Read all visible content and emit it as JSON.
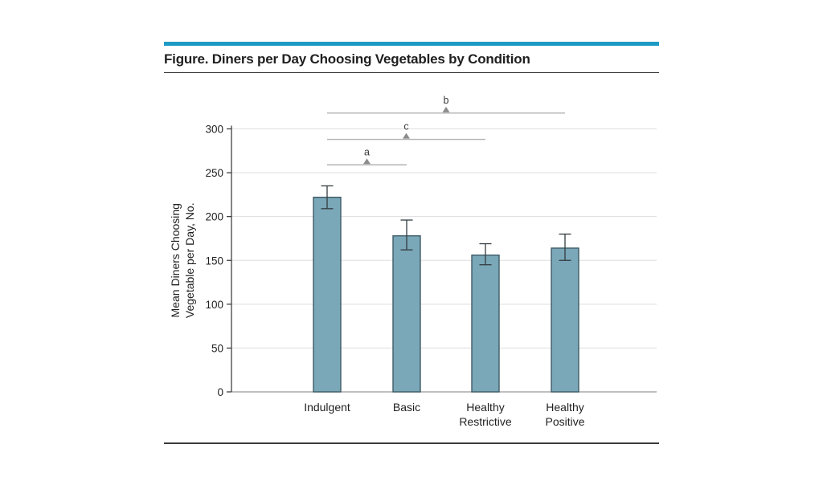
{
  "colors": {
    "accent_rule": "#1d9bc4",
    "bar_fill": "#7AA8B8",
    "bar_stroke": "#3E5A66",
    "error_bar": "#333B40",
    "grid": "#DEDEDE",
    "baseline": "#999999",
    "axis": "#333333",
    "sig_line": "#B3B3B3",
    "sig_marker": "#8C8C8C",
    "text": "#1F1F1F"
  },
  "chart_data": {
    "type": "bar",
    "title": "Figure. Diners per Day Choosing Vegetables by Condition",
    "categories": [
      "Indulgent",
      "Basic",
      "Healthy Restrictive",
      "Healthy Positive"
    ],
    "category_lines": [
      [
        "Indulgent"
      ],
      [
        "Basic"
      ],
      [
        "Healthy",
        "Restrictive"
      ],
      [
        "Healthy",
        "Positive"
      ]
    ],
    "values": [
      222,
      178,
      156,
      164
    ],
    "error_low": [
      209,
      162,
      145,
      150
    ],
    "error_high": [
      235,
      196,
      169,
      180
    ],
    "xlabel": "",
    "ylabel": "Mean Diners Choosing Vegetable per Day, No.",
    "ylabel_lines": [
      "Mean Diners Choosing",
      "Vegetable per Day, No."
    ],
    "ylim": [
      0,
      300
    ],
    "yticks": [
      0,
      50,
      100,
      150,
      200,
      250,
      300
    ],
    "grid": true,
    "legend": null,
    "significance_markers": [
      {
        "label": "a",
        "compares": [
          "Indulgent",
          "Basic"
        ],
        "from_index": 0,
        "to_index": 1,
        "y_value": 259
      },
      {
        "label": "c",
        "compares": [
          "Indulgent",
          "Healthy Restrictive"
        ],
        "from_index": 0,
        "to_index": 2,
        "y_value": 288
      },
      {
        "label": "b",
        "compares": [
          "Indulgent",
          "Healthy Positive"
        ],
        "from_index": 0,
        "to_index": 3,
        "y_value": 318
      }
    ]
  }
}
